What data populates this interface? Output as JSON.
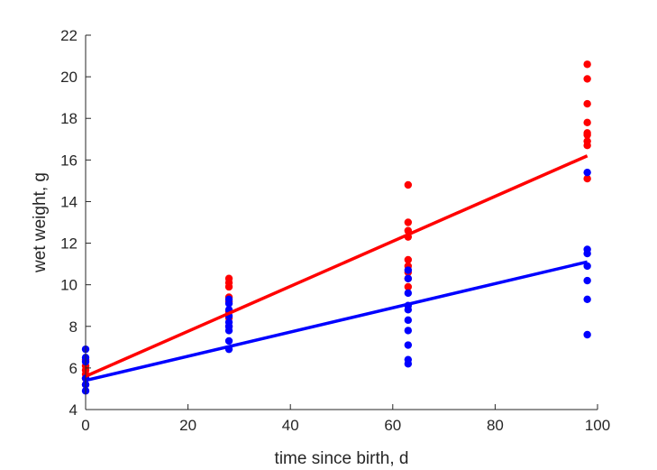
{
  "chart_data": {
    "type": "scatter",
    "title": "",
    "xlabel": "time since birth, d",
    "ylabel": "wet weight, g",
    "xlim": [
      0,
      100
    ],
    "ylim": [
      4,
      22
    ],
    "xticks": [
      0,
      20,
      40,
      60,
      80,
      100
    ],
    "yticks": [
      4,
      6,
      8,
      10,
      12,
      14,
      16,
      18,
      20,
      22
    ],
    "xtick_labels": [
      "0",
      "20",
      "40",
      "60",
      "80",
      "100"
    ],
    "ytick_labels": [
      "4",
      "6",
      "8",
      "10",
      "12",
      "14",
      "16",
      "18",
      "20",
      "22"
    ],
    "grid": false,
    "legend": "none",
    "series": [
      {
        "color": "#ff0000",
        "points": [
          [
            0,
            5.2
          ],
          [
            0,
            5.5
          ],
          [
            0,
            5.7
          ],
          [
            0,
            5.9
          ],
          [
            0,
            6.1
          ],
          [
            0,
            6.4
          ],
          [
            28,
            8.0
          ],
          [
            28,
            8.4
          ],
          [
            28,
            8.7
          ],
          [
            28,
            9.2
          ],
          [
            28,
            9.4
          ],
          [
            28,
            9.9
          ],
          [
            28,
            10.1
          ],
          [
            28,
            10.3
          ],
          [
            63,
            9.9
          ],
          [
            63,
            10.3
          ],
          [
            63,
            10.6
          ],
          [
            63,
            10.9
          ],
          [
            63,
            11.2
          ],
          [
            63,
            12.3
          ],
          [
            63,
            12.6
          ],
          [
            63,
            13.0
          ],
          [
            63,
            14.8
          ],
          [
            98,
            15.1
          ],
          [
            98,
            16.7
          ],
          [
            98,
            16.9
          ],
          [
            98,
            17.2
          ],
          [
            98,
            17.3
          ],
          [
            98,
            17.8
          ],
          [
            98,
            18.7
          ],
          [
            98,
            19.9
          ],
          [
            98,
            20.6
          ]
        ],
        "fit_line": [
          [
            0,
            5.6
          ],
          [
            98,
            16.2
          ]
        ]
      },
      {
        "color": "#0000ff",
        "points": [
          [
            0,
            4.9
          ],
          [
            0,
            5.2
          ],
          [
            0,
            5.5
          ],
          [
            0,
            6.3
          ],
          [
            0,
            6.5
          ],
          [
            0,
            6.9
          ],
          [
            28,
            6.9
          ],
          [
            28,
            7.3
          ],
          [
            28,
            7.8
          ],
          [
            28,
            8.0
          ],
          [
            28,
            8.2
          ],
          [
            28,
            8.5
          ],
          [
            28,
            8.8
          ],
          [
            28,
            9.1
          ],
          [
            28,
            9.3
          ],
          [
            63,
            6.2
          ],
          [
            63,
            6.4
          ],
          [
            63,
            7.1
          ],
          [
            63,
            7.8
          ],
          [
            63,
            8.3
          ],
          [
            63,
            8.8
          ],
          [
            63,
            9.0
          ],
          [
            63,
            9.6
          ],
          [
            63,
            10.3
          ],
          [
            63,
            10.7
          ],
          [
            98,
            7.6
          ],
          [
            98,
            9.3
          ],
          [
            98,
            10.2
          ],
          [
            98,
            10.9
          ],
          [
            98,
            11.5
          ],
          [
            98,
            11.7
          ],
          [
            98,
            15.4
          ]
        ],
        "fit_line": [
          [
            0,
            5.4
          ],
          [
            98,
            11.1
          ]
        ]
      }
    ]
  }
}
